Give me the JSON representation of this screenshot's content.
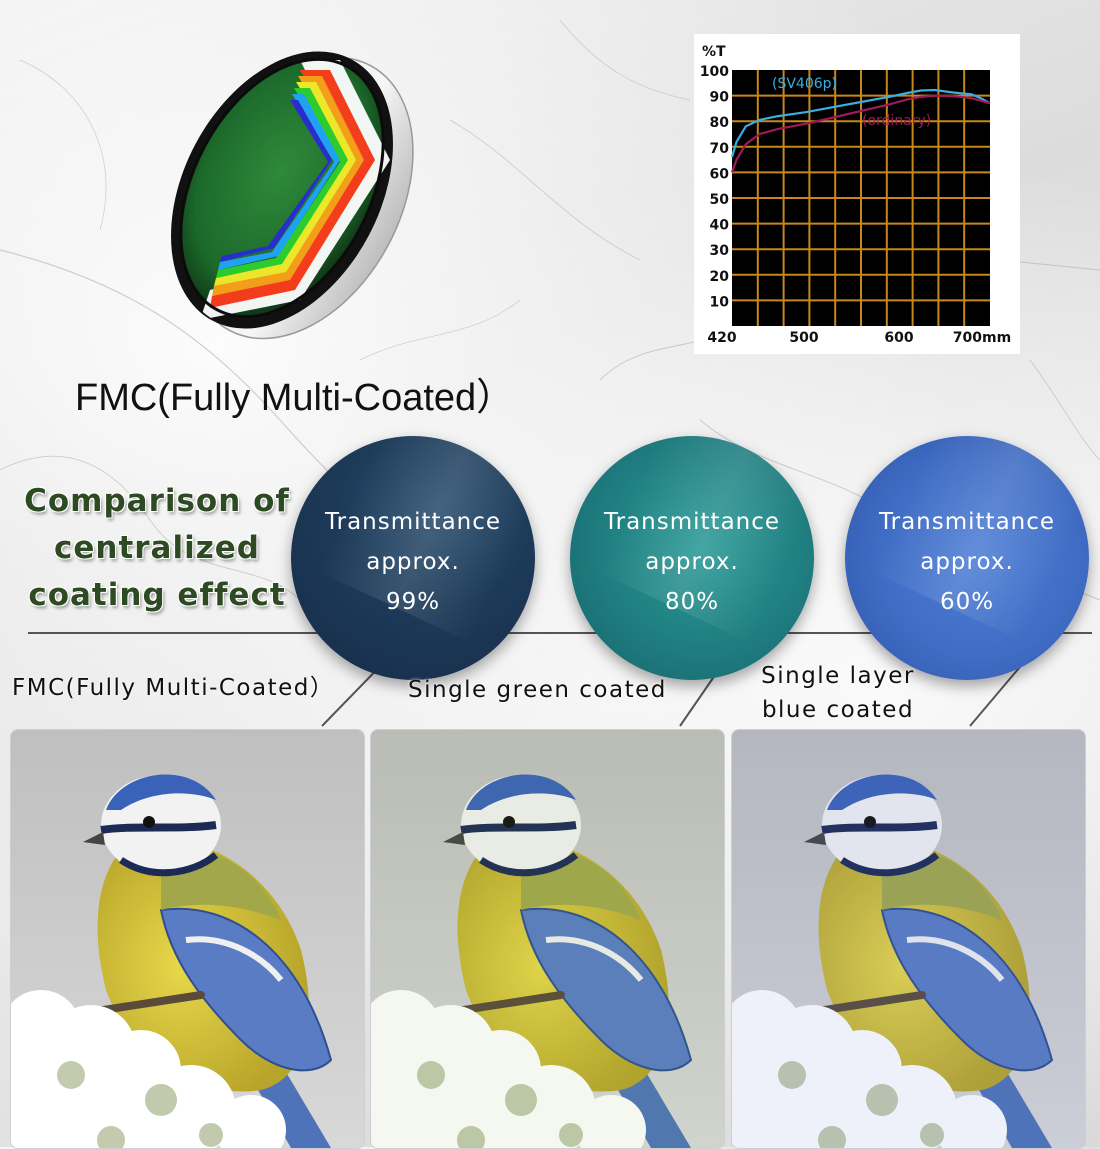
{
  "lens_title": "FMC(Fully Multi-Coated）",
  "comparison_heading": [
    "Comparison of",
    "centralized",
    "coating effect"
  ],
  "circles": [
    {
      "line1": "Transmittance",
      "line2": "approx.",
      "line3": "99%",
      "color": "#1c3a58"
    },
    {
      "line1": "Transmittance",
      "line2": "approx.",
      "line3": "80%",
      "color": "#1f7d80"
    },
    {
      "line1": "Transmittance",
      "line2": "approx.",
      "line3": "60%",
      "color": "#3f6cc4"
    }
  ],
  "labels": {
    "fmc": "FMC(Fully Multi-Coated）",
    "green": "Single green coated",
    "blue_line1": "Single layer",
    "blue_line2": "blue coated"
  },
  "photos": [
    {
      "subject": "blue-tit-bird",
      "tint": "neutral"
    },
    {
      "subject": "blue-tit-bird",
      "tint": "green"
    },
    {
      "subject": "blue-tit-bird",
      "tint": "blue"
    }
  ],
  "chart_data": {
    "type": "line",
    "title": "",
    "ylabel": "%T",
    "xlabel": "",
    "x_unit_label": "700mm",
    "ylim": [
      0,
      100
    ],
    "xlim": [
      420,
      700
    ],
    "y_ticks": [
      10,
      20,
      30,
      40,
      50,
      60,
      70,
      80,
      90,
      100
    ],
    "x_ticks": [
      {
        "value": 420,
        "label": "420"
      },
      {
        "value": 500,
        "label": "500"
      },
      {
        "value": 600,
        "label": "600"
      },
      {
        "value": 700,
        "label": "700mm"
      }
    ],
    "grid": true,
    "background": "#000000",
    "grid_color": "#c9861a",
    "series": [
      {
        "name": "(SV406p)",
        "color": "#3aaee0",
        "x": [
          420,
          425,
          435,
          450,
          470,
          500,
          530,
          560,
          590,
          610,
          625,
          640,
          660,
          680,
          690,
          700
        ],
        "y": [
          66,
          72,
          78,
          80.5,
          82,
          83.5,
          85.5,
          87.5,
          89.5,
          91,
          92,
          92.2,
          91.2,
          90.5,
          89,
          87
        ]
      },
      {
        "name": "(ordinary)",
        "color": "#a01a5a",
        "x": [
          420,
          425,
          435,
          450,
          470,
          500,
          530,
          560,
          590,
          610,
          625,
          640,
          660,
          680,
          690,
          700
        ],
        "y": [
          60,
          65,
          71,
          75,
          77,
          79,
          81.5,
          84,
          86.5,
          88.5,
          89.5,
          90,
          89.8,
          89,
          88,
          87
        ]
      }
    ]
  }
}
